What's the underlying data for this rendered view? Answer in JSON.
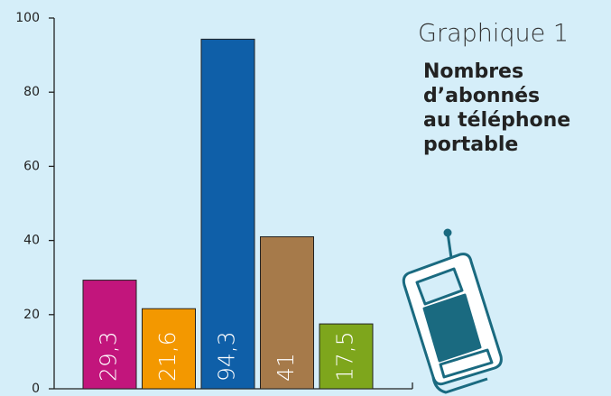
{
  "chart_data": {
    "type": "bar",
    "title": "Graphique 1",
    "subtitle": [
      "Nombres",
      "d’abonnés",
      "au téléphone",
      "portable"
    ],
    "categories": [
      null,
      null,
      null,
      null,
      null
    ],
    "values": [
      29.3,
      21.6,
      94.3,
      41,
      17.5
    ],
    "value_labels": [
      "29,3",
      "21,6",
      "94,3",
      "41",
      "17,5"
    ],
    "colors": [
      "#c2157c",
      "#f39800",
      "#0f5fa8",
      "#a67a4a",
      "#7ea61c"
    ],
    "ylim": [
      0,
      100
    ],
    "yticks": [
      0,
      20,
      40,
      60,
      80,
      100
    ],
    "grid": false
  }
}
